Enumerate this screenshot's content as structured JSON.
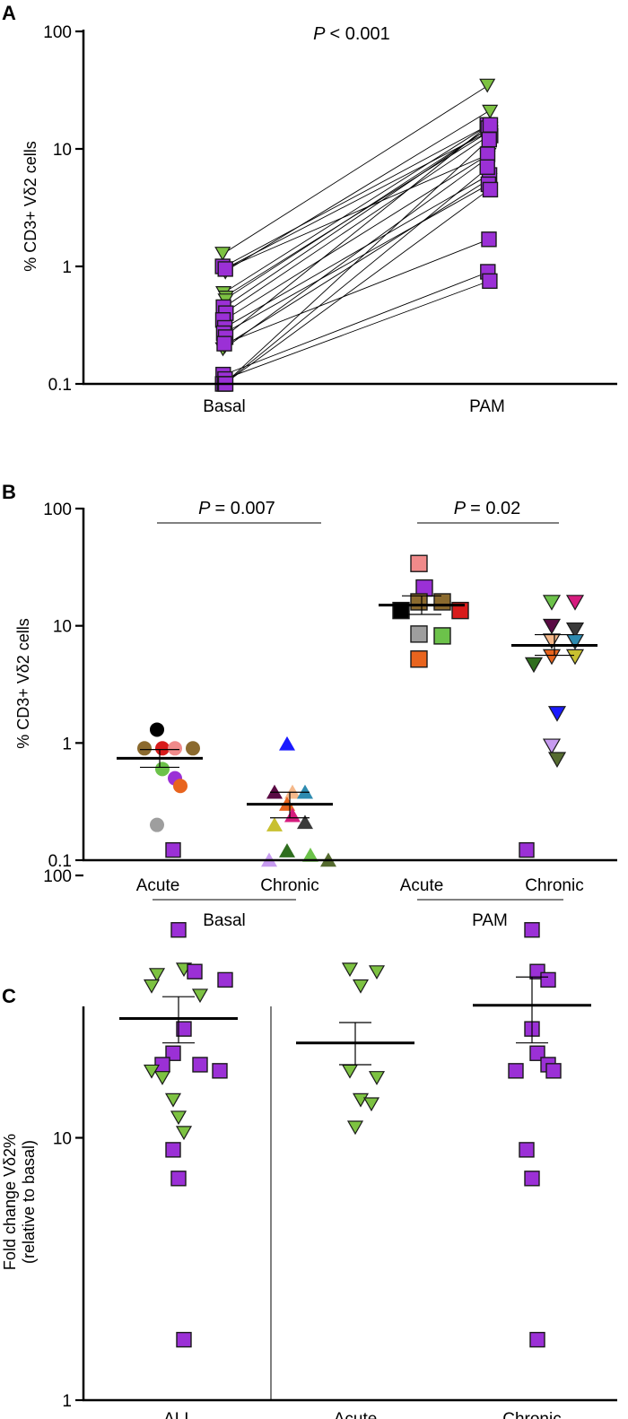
{
  "chart_data": [
    {
      "panel": "A",
      "type": "scatter",
      "subtype": "paired-line",
      "ylabel": "% CD3+ Vδ2 cells",
      "yscale": "log",
      "ylim": [
        0.1,
        100
      ],
      "yticks": [
        "0.1",
        "1",
        "10",
        "100"
      ],
      "categories": [
        "Basal",
        "PAM"
      ],
      "p_prefix": "P",
      "p_suffix": "< 0.001",
      "series": [
        {
          "marker": "triangle-down",
          "color": "#7dc242",
          "pairs": [
            [
              1.3,
              35
            ],
            [
              0.9,
              21
            ],
            [
              0.6,
              16
            ],
            [
              0.55,
              14
            ],
            [
              0.2,
              8.5
            ],
            [
              0.21,
              5.5
            ],
            [
              0.95,
              9
            ],
            [
              0.52,
              15
            ]
          ]
        },
        {
          "marker": "square",
          "color": "#9b30d6",
          "pairs": [
            [
              1.0,
              16
            ],
            [
              0.95,
              14
            ],
            [
              0.45,
              15
            ],
            [
              0.4,
              13
            ],
            [
              0.35,
              9
            ],
            [
              0.3,
              6
            ],
            [
              0.27,
              5
            ],
            [
              0.25,
              16
            ],
            [
              0.22,
              1.7
            ],
            [
              0.12,
              0.9
            ],
            [
              0.11,
              0.75
            ],
            [
              0.1,
              7
            ],
            [
              0.1,
              12
            ],
            [
              0.1,
              4.5
            ]
          ]
        }
      ]
    },
    {
      "panel": "B",
      "type": "scatter",
      "ylabel": "% CD3+ Vδ2 cells",
      "yscale": "log",
      "ylim": [
        0.1,
        100
      ],
      "yticks": [
        "0.1",
        "1",
        "10",
        "100"
      ],
      "categories": [
        "Acute",
        "Chronic",
        "Acute",
        "Chronic"
      ],
      "groups": [
        "Basal",
        "PAM"
      ],
      "comparisons": [
        {
          "prefix": "P",
          "suffix": "= 0.007"
        },
        {
          "prefix": "P",
          "suffix": "= 0.02"
        }
      ],
      "series": [
        {
          "name": "Basal Acute",
          "marker": "circle",
          "mean": 0.74,
          "sem": [
            0.62,
            0.88
          ],
          "points": [
            [
              1.3,
              "#000000"
            ],
            [
              0.9,
              "#d81b1b"
            ],
            [
              0.9,
              "#f08a8a"
            ],
            [
              0.9,
              "#8b6a2e"
            ],
            [
              0.9,
              "#8b6a2e"
            ],
            [
              0.6,
              "#6cc24a"
            ],
            [
              0.5,
              "#9b30d6"
            ],
            [
              0.43,
              "#e8641e"
            ],
            [
              0.2,
              "#9e9e9e"
            ]
          ]
        },
        {
          "name": "Basal Chronic",
          "marker": "triangle-up",
          "mean": 0.3,
          "sem": [
            0.23,
            0.38
          ],
          "points": [
            [
              0.98,
              "#1a1aff"
            ],
            [
              0.38,
              "#f5b88a"
            ],
            [
              0.38,
              "#2e8bb0"
            ],
            [
              0.38,
              "#5a0a44"
            ],
            [
              0.3,
              "#e8641e"
            ],
            [
              0.24,
              "#d61c7e"
            ],
            [
              0.21,
              "#3a3a3a"
            ],
            [
              0.2,
              "#c8c030"
            ],
            [
              0.12,
              "#2f6e1e"
            ],
            [
              0.11,
              "#6cc24a"
            ],
            [
              0.1,
              "#c79bf0"
            ],
            [
              0.1,
              "#556b2f"
            ]
          ]
        },
        {
          "name": "PAM Acute",
          "marker": "square",
          "mean": 15,
          "sem": [
            12.5,
            18
          ],
          "points": [
            [
              34,
              "#f08a8a"
            ],
            [
              21,
              "#9b30d6"
            ],
            [
              16,
              "#8b6a2e"
            ],
            [
              16,
              "#8b6a2e"
            ],
            [
              13.5,
              "#000000"
            ],
            [
              13.5,
              "#d81b1b"
            ],
            [
              8.5,
              "#9e9e9e"
            ],
            [
              8.2,
              "#6cc24a"
            ],
            [
              5.2,
              "#e8641e"
            ]
          ]
        },
        {
          "name": "PAM Chronic",
          "marker": "triangle-down",
          "mean": 6.8,
          "sem": [
            5.6,
            8.4
          ],
          "points": [
            [
              16,
              "#6cc24a"
            ],
            [
              16,
              "#d61c7e"
            ],
            [
              10,
              "#5a0a44"
            ],
            [
              9.3,
              "#3a3a3a"
            ],
            [
              7.5,
              "#f5b88a"
            ],
            [
              7.4,
              "#2e8bb0"
            ],
            [
              5.5,
              "#e8641e"
            ],
            [
              5.5,
              "#c8c030"
            ],
            [
              4.7,
              "#2f6e1e"
            ],
            [
              1.8,
              "#1a1aff"
            ],
            [
              0.95,
              "#c79bf0"
            ],
            [
              0.73,
              "#556b2f"
            ]
          ]
        }
      ]
    },
    {
      "panel": "C",
      "type": "scatter",
      "ylabel": "Fold change Vδ2%",
      "ylabel2": "(relative to basal)",
      "yscale": "log",
      "ylim": [
        1,
        150
      ],
      "yticks": [
        "1",
        "10",
        "100"
      ],
      "categories": [
        "ALL",
        "Acute",
        "Chronic"
      ],
      "series": [
        {
          "name": "ALL",
          "mean": 28.5,
          "sem": [
            23,
            34.5
          ],
          "points": [
            [
              125,
              "square",
              "#9b30d6"
            ],
            [
              62,
              "square",
              "#9b30d6"
            ],
            [
              44,
              "triangle-down",
              "#7dc242"
            ],
            [
              43,
              "square",
              "#9b30d6"
            ],
            [
              42,
              "triangle-down",
              "#7dc242"
            ],
            [
              40,
              "square",
              "#9b30d6"
            ],
            [
              38,
              "triangle-down",
              "#7dc242"
            ],
            [
              35,
              "triangle-down",
              "#7dc242"
            ],
            [
              26,
              "square",
              "#9b30d6"
            ],
            [
              21,
              "square",
              "#9b30d6"
            ],
            [
              19,
              "square",
              "#9b30d6"
            ],
            [
              19,
              "square",
              "#9b30d6"
            ],
            [
              18,
              "triangle-down",
              "#7dc242"
            ],
            [
              18,
              "square",
              "#9b30d6"
            ],
            [
              17,
              "triangle-down",
              "#7dc242"
            ],
            [
              14,
              "triangle-down",
              "#7dc242"
            ],
            [
              12,
              "triangle-down",
              "#7dc242"
            ],
            [
              10.5,
              "triangle-down",
              "#7dc242"
            ],
            [
              9,
              "square",
              "#9b30d6"
            ],
            [
              7,
              "square",
              "#9b30d6"
            ],
            [
              1.7,
              "square",
              "#9b30d6"
            ]
          ]
        },
        {
          "name": "Acute",
          "mean": 23,
          "sem": [
            19,
            27.5
          ],
          "points": [
            [
              44,
              "triangle-down",
              "#7dc242"
            ],
            [
              43,
              "triangle-down",
              "#7dc242"
            ],
            [
              38,
              "triangle-down",
              "#7dc242"
            ],
            [
              18,
              "triangle-down",
              "#7dc242"
            ],
            [
              17,
              "triangle-down",
              "#7dc242"
            ],
            [
              14,
              "triangle-down",
              "#7dc242"
            ],
            [
              13.5,
              "triangle-down",
              "#7dc242"
            ],
            [
              11,
              "triangle-down",
              "#7dc242"
            ]
          ]
        },
        {
          "name": "Chronic",
          "mean": 32,
          "sem": [
            23,
            41
          ],
          "points": [
            [
              125,
              "square",
              "#9b30d6"
            ],
            [
              62,
              "square",
              "#9b30d6"
            ],
            [
              43,
              "square",
              "#9b30d6"
            ],
            [
              40,
              "square",
              "#9b30d6"
            ],
            [
              26,
              "square",
              "#9b30d6"
            ],
            [
              21,
              "square",
              "#9b30d6"
            ],
            [
              19,
              "square",
              "#9b30d6"
            ],
            [
              18,
              "square",
              "#9b30d6"
            ],
            [
              18,
              "square",
              "#9b30d6"
            ],
            [
              9,
              "square",
              "#9b30d6"
            ],
            [
              7,
              "square",
              "#9b30d6"
            ],
            [
              1.7,
              "square",
              "#9b30d6"
            ]
          ]
        }
      ]
    }
  ]
}
